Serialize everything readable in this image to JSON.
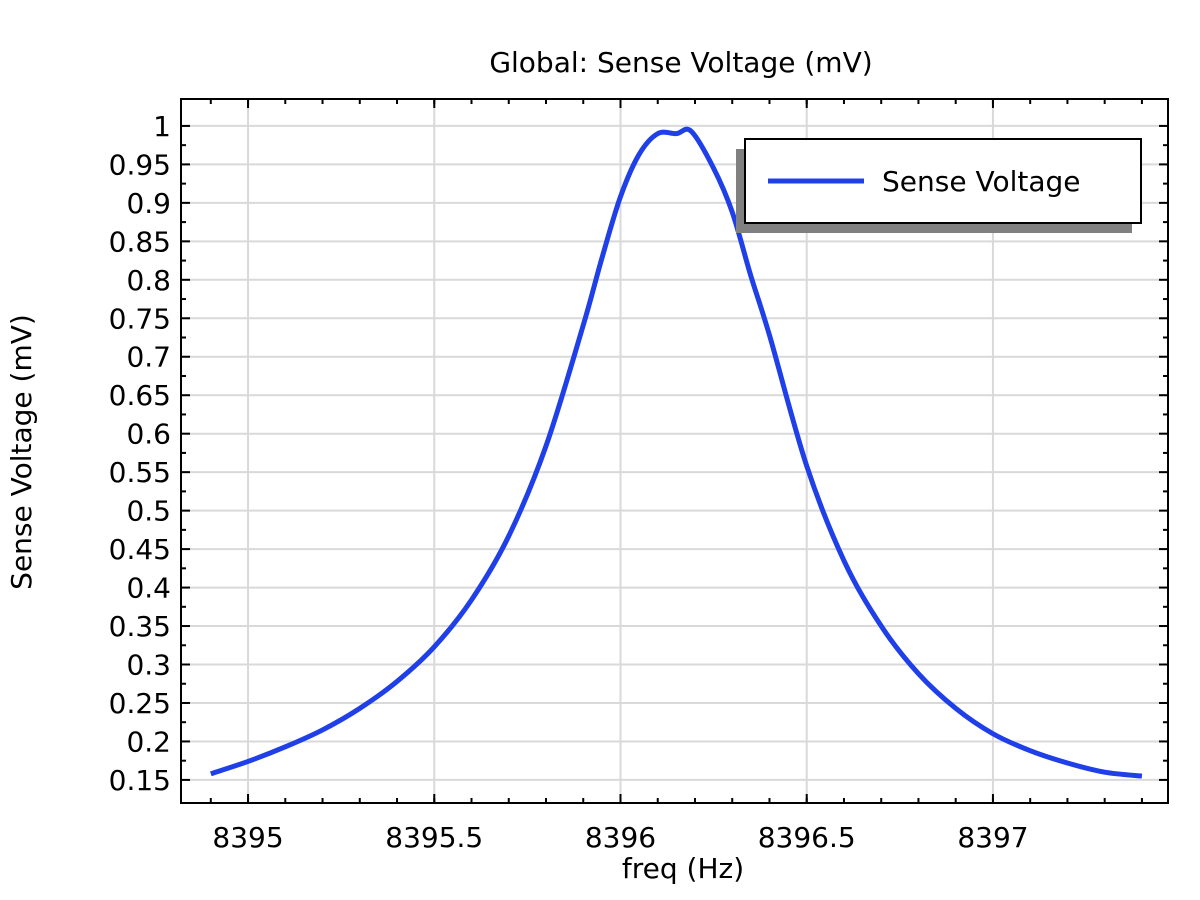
{
  "chart_data": {
    "type": "line",
    "title": "Global: Sense Voltage (mV)",
    "xlabel": "freq (Hz)",
    "ylabel": "Sense Voltage (mV)",
    "xlim": [
      8394.82,
      8397.47
    ],
    "ylim": [
      0.12,
      1.035
    ],
    "xticks": [
      8395,
      8395.5,
      8396,
      8396.5,
      8397
    ],
    "xtick_labels": [
      "8395",
      "8395.5",
      "8396",
      "8396.5",
      "8397"
    ],
    "yticks": [
      0.15,
      0.2,
      0.25,
      0.3,
      0.35,
      0.4,
      0.45,
      0.5,
      0.55,
      0.6,
      0.65,
      0.7,
      0.75,
      0.8,
      0.85,
      0.9,
      0.95,
      1
    ],
    "ytick_labels": [
      "0.15",
      "0.2",
      "0.25",
      "0.3",
      "0.35",
      "0.4",
      "0.45",
      "0.5",
      "0.55",
      "0.6",
      "0.65",
      "0.7",
      "0.75",
      "0.8",
      "0.85",
      "0.9",
      "0.95",
      "1"
    ],
    "grid": true,
    "legend_position": "top-right",
    "series": [
      {
        "name": "Sense Voltage",
        "color": "#1f3fe8",
        "x": [
          8394.9,
          8395.0,
          8395.1,
          8395.2,
          8395.3,
          8395.4,
          8395.5,
          8395.6,
          8395.7,
          8395.8,
          8395.9,
          8395.95,
          8396.0,
          8396.05,
          8396.1,
          8396.15,
          8396.19,
          8396.25,
          8396.3,
          8396.35,
          8396.4,
          8396.5,
          8396.6,
          8396.7,
          8396.8,
          8396.9,
          8397.0,
          8397.1,
          8397.2,
          8397.3,
          8397.4
        ],
        "y": [
          0.158,
          0.174,
          0.193,
          0.215,
          0.243,
          0.278,
          0.323,
          0.384,
          0.467,
          0.584,
          0.741,
          0.828,
          0.908,
          0.963,
          0.99,
          0.99,
          0.993,
          0.945,
          0.888,
          0.805,
          0.728,
          0.558,
          0.435,
          0.35,
          0.288,
          0.243,
          0.21,
          0.188,
          0.172,
          0.16,
          0.155
        ]
      }
    ]
  }
}
